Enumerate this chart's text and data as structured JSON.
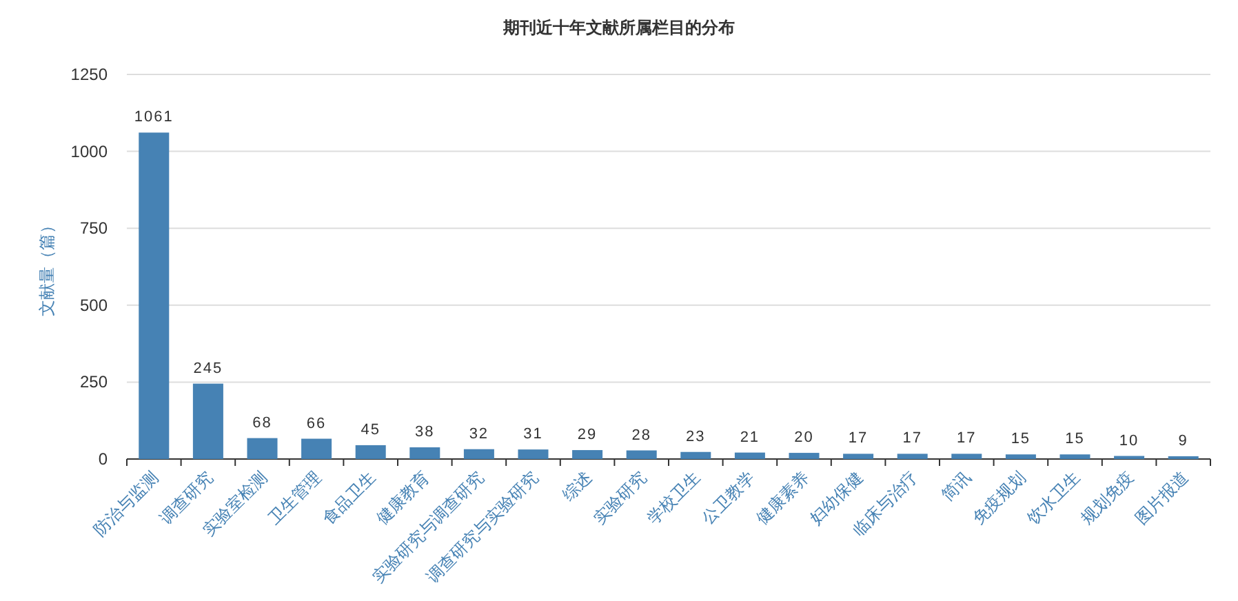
{
  "chart_data": {
    "type": "bar",
    "title": "期刊近十年文献所属栏目的分布",
    "ylabel": "文献量（篇）",
    "categories": [
      "防治与监测",
      "调查研究",
      "实验室检测",
      "卫生管理",
      "食品卫生",
      "健康教育",
      "实验研究与调查研究",
      "调查研究与实验研究",
      "综述",
      "实验研究",
      "学校卫生",
      "公卫教学",
      "健康素养",
      "妇幼保健",
      "临床与治疗",
      "简讯",
      "免疫规划",
      "饮水卫生",
      "规划免疫",
      "图片报道"
    ],
    "values": [
      1061,
      245,
      68,
      66,
      45,
      38,
      32,
      31,
      29,
      28,
      23,
      21,
      20,
      17,
      17,
      17,
      15,
      15,
      10,
      9
    ],
    "color": "#4682b4",
    "ylim": [
      0,
      1250
    ],
    "yticks": [
      0,
      250,
      500,
      750,
      1000,
      1250
    ],
    "grid": "y",
    "data_labels": true
  }
}
